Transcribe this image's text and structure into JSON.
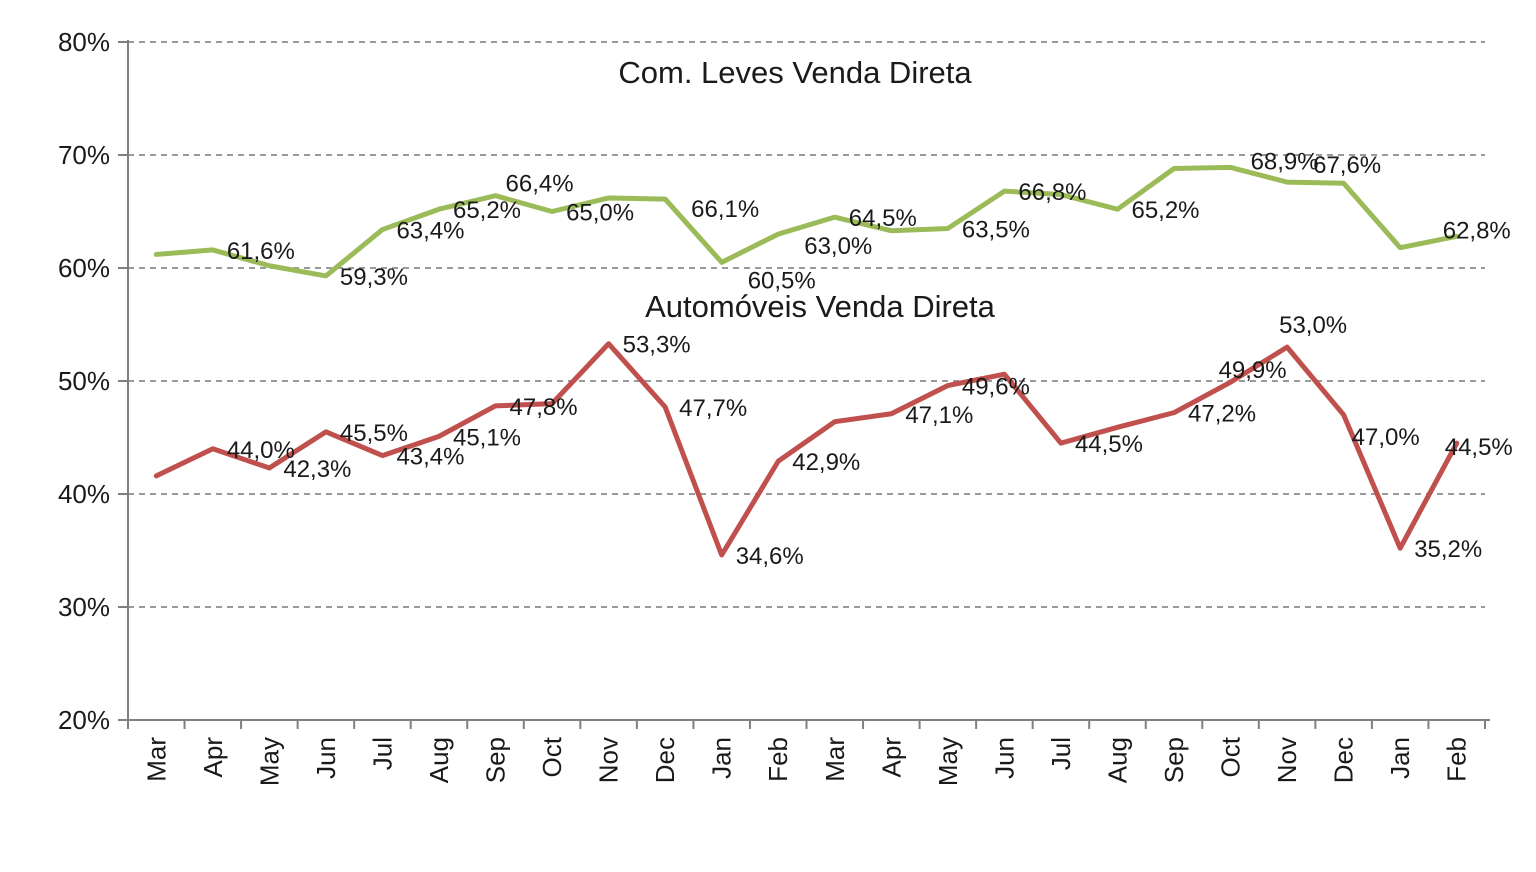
{
  "page": {
    "background": "#ffffff",
    "description": "Line chart comparing direct-sale share of light commercial vehicles vs automobiles over 24 months"
  },
  "chart_data": {
    "type": "line",
    "categories": [
      "Mar",
      "Apr",
      "May",
      "Jun",
      "Jul",
      "Aug",
      "Sep",
      "Oct",
      "Nov",
      "Dec",
      "Jan",
      "Feb",
      "Mar",
      "Apr",
      "May",
      "Jun",
      "Jul",
      "Aug",
      "Sep",
      "Oct",
      "Nov",
      "Dec",
      "Jan",
      "Feb"
    ],
    "series": [
      {
        "name": "Com. Leves Venda Direta",
        "color": "#9BBB59",
        "values": [
          61.2,
          61.6,
          60.2,
          59.3,
          63.4,
          65.2,
          66.4,
          65.0,
          66.2,
          66.1,
          60.5,
          63.0,
          64.5,
          63.3,
          63.5,
          66.8,
          66.5,
          65.2,
          68.8,
          68.9,
          67.6,
          67.5,
          61.8,
          62.8
        ],
        "labels": [
          "",
          "61,6%",
          "",
          "59,3%",
          "63,4%",
          "65,2%",
          "66,4%",
          "65,0%",
          "",
          "66,1%",
          "60,5%",
          "63,0%",
          "64,5%",
          "",
          "63,5%",
          "66,8%",
          "",
          "65,2%",
          "",
          "68,9%",
          "67,6%",
          "",
          "",
          "62,8%"
        ]
      },
      {
        "name": "Automóveis Venda Direta",
        "color": "#C0504D",
        "values": [
          41.6,
          44.0,
          42.3,
          45.5,
          43.4,
          45.1,
          47.8,
          48.0,
          53.3,
          47.7,
          34.6,
          42.9,
          46.4,
          47.1,
          49.6,
          50.6,
          44.5,
          45.9,
          47.2,
          49.9,
          53.0,
          47.0,
          35.2,
          44.5
        ],
        "labels": [
          "",
          "44,0%",
          "42,3%",
          "45,5%",
          "43,4%",
          "45,1%",
          "47,8%",
          "",
          "53,3%",
          "47,7%",
          "34,6%",
          "42,9%",
          "",
          "47,1%",
          "49,6%",
          "",
          "44,5%",
          "",
          "47,2%",
          "49,9%",
          "53,0%",
          "47,0%",
          "35,2%",
          "44,5%"
        ]
      }
    ],
    "annotations": [
      {
        "text": "Com. Leves Venda Direta"
      },
      {
        "text": "Automóveis Venda Direta"
      }
    ],
    "ylim": [
      20,
      80
    ],
    "yticks": [
      20,
      30,
      40,
      50,
      60,
      70,
      80
    ],
    "ytick_labels": [
      "20%",
      "30%",
      "40%",
      "50%",
      "60%",
      "70%",
      "80%"
    ],
    "xlabel": "",
    "ylabel": "",
    "grid": "horizontal dashed",
    "legend_position": "none",
    "number_format": "decimal comma percent, e.g. 61,6%",
    "style": {
      "grid_color": "#9a9a9a",
      "axis_color": "#808080",
      "text_color": "#1a1a1a",
      "background": "#ffffff"
    }
  }
}
